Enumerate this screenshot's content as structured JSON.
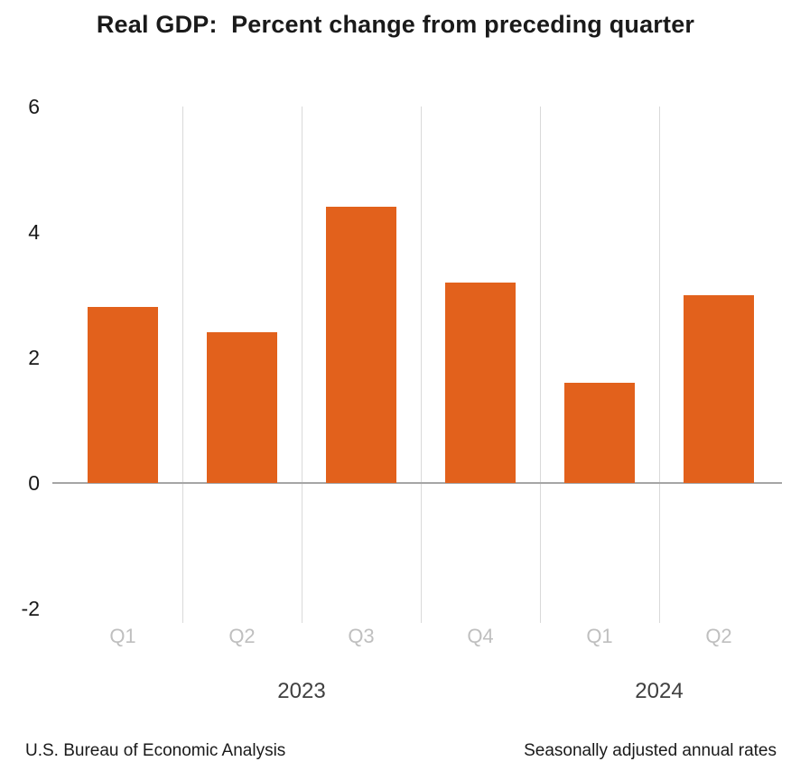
{
  "footer": {
    "source": "U.S. Bureau of Economic Analysis",
    "note": "Seasonally adjusted annual rates"
  },
  "chart_data": {
    "type": "bar",
    "title": "Real GDP:  Percent change from preceding quarter",
    "categories": [
      "Q1",
      "Q2",
      "Q3",
      "Q4",
      "Q1",
      "Q2"
    ],
    "values": [
      2.8,
      2.4,
      4.4,
      3.2,
      1.6,
      3.0
    ],
    "year_groups": [
      {
        "label": "2023",
        "start": 0,
        "end": 3
      },
      {
        "label": "2024",
        "start": 4,
        "end": 5
      }
    ],
    "yticks": [
      6,
      4,
      2,
      0,
      -2
    ],
    "ylim": [
      -2,
      6
    ],
    "xlabel": "",
    "ylabel": "",
    "grid": "vertical category separators",
    "legend": "none",
    "colors": {
      "bar": "#E2611C",
      "gridline": "#D9D9D9",
      "zero_line": "#A6A6A6",
      "tick_label": "#1A1A1A",
      "quarter_label": "#BFBFBF",
      "year_label": "#404040",
      "title": "#1A1A1A",
      "footer": "#1A1A1A"
    }
  }
}
